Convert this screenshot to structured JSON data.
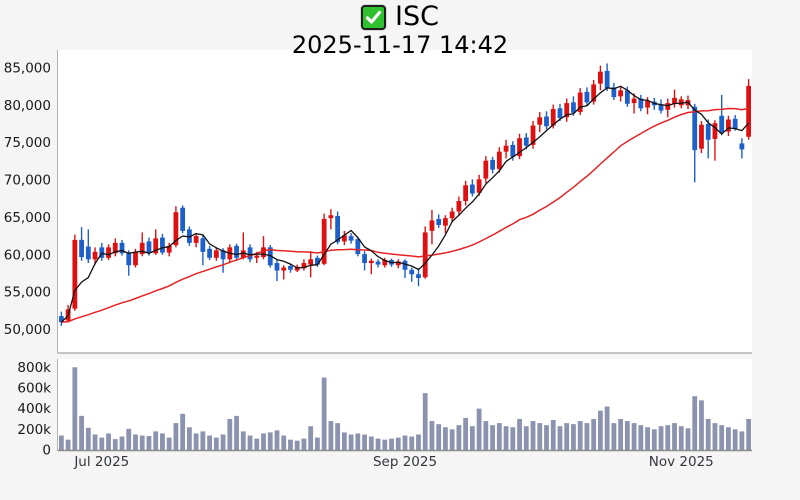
{
  "header": {
    "symbol": "ISC",
    "timestamp": "2025-11-17 14:42",
    "checkbox_checked": true
  },
  "colors": {
    "background": "#f5f5f5",
    "plot_background": "#ffffff",
    "up_candle": "#dd1111",
    "down_candle": "#1e60ca",
    "ma_short_line": "#111111",
    "ma_long_line": "#e62222",
    "volume_bar": "#8b93af",
    "axis_line": "#b3b3b3",
    "baseline": "#8c8c8c",
    "tick_text": "#1a1a1a",
    "x_tick_text": "#33373d",
    "checkbox_green": "#2fc12f"
  },
  "price_axis": {
    "tick_labels": [
      "85,000",
      "80,000",
      "75,000",
      "70,000",
      "65,000",
      "60,000",
      "55,000",
      "50,000"
    ],
    "tick_values": [
      85000,
      80000,
      75000,
      70000,
      65000,
      60000,
      55000,
      50000
    ],
    "range": [
      47000,
      87400
    ]
  },
  "volume_axis": {
    "tick_labels": [
      "800k",
      "600k",
      "400k",
      "200k",
      "0"
    ],
    "tick_values": [
      800000,
      600000,
      400000,
      200000,
      0
    ],
    "range": [
      0,
      880000
    ]
  },
  "x_axis": {
    "ticks": [
      {
        "label": "Jul 2025",
        "index": 6
      },
      {
        "label": "Sep 2025",
        "index": 51
      },
      {
        "label": "Nov 2025",
        "index": 92
      }
    ]
  },
  "chart_data": {
    "type": "candlestick_with_volume",
    "title": "ISC",
    "subtitle": "2025-11-17 14:42",
    "unit": "KRW",
    "ma": {
      "short_period": 5,
      "long_period": 30
    },
    "columns": [
      "open",
      "high",
      "low",
      "close",
      "volume"
    ],
    "candles": [
      [
        51800,
        52400,
        50500,
        51000,
        140000
      ],
      [
        51200,
        53300,
        51000,
        52700,
        100000
      ],
      [
        52800,
        62700,
        52500,
        62000,
        800000
      ],
      [
        62000,
        63700,
        59200,
        59700,
        330000
      ],
      [
        61100,
        63400,
        58900,
        59400,
        215000
      ],
      [
        59400,
        61000,
        58700,
        60400,
        150000
      ],
      [
        61000,
        61600,
        59200,
        59600,
        120000
      ],
      [
        59600,
        61400,
        59300,
        61000,
        160000
      ],
      [
        60200,
        62200,
        59800,
        61600,
        105000
      ],
      [
        61600,
        62000,
        59900,
        60200,
        130000
      ],
      [
        60200,
        60600,
        57200,
        58600,
        205000
      ],
      [
        58600,
        60800,
        58300,
        60400,
        150000
      ],
      [
        60100,
        63000,
        59800,
        61600,
        140000
      ],
      [
        61800,
        62300,
        59900,
        60200,
        135000
      ],
      [
        60200,
        63400,
        60000,
        62200,
        180000
      ],
      [
        62300,
        62800,
        60000,
        60300,
        160000
      ],
      [
        60300,
        61600,
        59800,
        61200,
        120000
      ],
      [
        61300,
        66500,
        61000,
        65700,
        260000
      ],
      [
        66300,
        66600,
        62900,
        63200,
        350000
      ],
      [
        63400,
        63800,
        61200,
        61600,
        220000
      ],
      [
        61600,
        62900,
        61000,
        62500,
        160000
      ],
      [
        62200,
        62600,
        58600,
        60400,
        180000
      ],
      [
        60800,
        61200,
        59300,
        59600,
        140000
      ],
      [
        59600,
        61000,
        59200,
        60600,
        120000
      ],
      [
        60600,
        60900,
        57600,
        59400,
        150000
      ],
      [
        59400,
        61400,
        58900,
        61000,
        300000
      ],
      [
        61200,
        61500,
        59300,
        59600,
        330000
      ],
      [
        59600,
        63000,
        59400,
        60600,
        180000
      ],
      [
        61000,
        61400,
        59000,
        59400,
        140000
      ],
      [
        59600,
        60400,
        58900,
        59900,
        110000
      ],
      [
        59700,
        62500,
        59400,
        61000,
        160000
      ],
      [
        61000,
        61300,
        58300,
        58600,
        170000
      ],
      [
        58900,
        59300,
        56500,
        57900,
        190000
      ],
      [
        57900,
        58600,
        56700,
        58300,
        140000
      ],
      [
        58500,
        58800,
        57600,
        58000,
        100000
      ],
      [
        57900,
        58700,
        57700,
        58400,
        90000
      ],
      [
        58200,
        59400,
        57900,
        58900,
        110000
      ],
      [
        58700,
        60500,
        57000,
        59400,
        230000
      ],
      [
        59600,
        59900,
        58400,
        58700,
        120000
      ],
      [
        58800,
        65500,
        58600,
        64800,
        700000
      ],
      [
        64900,
        66100,
        63400,
        65300,
        280000
      ],
      [
        65200,
        65800,
        61400,
        61700,
        260000
      ],
      [
        61800,
        63200,
        61300,
        62600,
        170000
      ],
      [
        62500,
        62900,
        61500,
        61900,
        150000
      ],
      [
        62100,
        62400,
        59800,
        60100,
        160000
      ],
      [
        60100,
        60500,
        57900,
        58900,
        150000
      ],
      [
        58900,
        59500,
        57400,
        59200,
        130000
      ],
      [
        59100,
        59400,
        58300,
        58700,
        110000
      ],
      [
        58600,
        59600,
        58300,
        59300,
        100000
      ],
      [
        59300,
        59500,
        58400,
        58700,
        110000
      ],
      [
        58600,
        59400,
        58200,
        59100,
        120000
      ],
      [
        59200,
        59400,
        56900,
        58000,
        140000
      ],
      [
        58000,
        58300,
        56400,
        57400,
        130000
      ],
      [
        57400,
        58200,
        55800,
        56900,
        150000
      ],
      [
        57000,
        63800,
        56800,
        63000,
        550000
      ],
      [
        63200,
        66000,
        61400,
        64600,
        280000
      ],
      [
        64800,
        65400,
        63600,
        64000,
        250000
      ],
      [
        63900,
        65300,
        62900,
        64900,
        220000
      ],
      [
        64900,
        66300,
        64400,
        65800,
        200000
      ],
      [
        65800,
        67800,
        65200,
        67200,
        240000
      ],
      [
        67200,
        69900,
        66600,
        69300,
        310000
      ],
      [
        69400,
        70100,
        67800,
        68200,
        230000
      ],
      [
        68300,
        70700,
        67900,
        70100,
        400000
      ],
      [
        70200,
        73200,
        69600,
        72600,
        280000
      ],
      [
        72700,
        73100,
        70900,
        71400,
        240000
      ],
      [
        71500,
        74400,
        71000,
        73800,
        260000
      ],
      [
        73800,
        75400,
        72900,
        74600,
        230000
      ],
      [
        74700,
        75200,
        72600,
        73100,
        220000
      ],
      [
        73200,
        76200,
        72800,
        75600,
        300000
      ],
      [
        75700,
        76300,
        74100,
        74600,
        230000
      ],
      [
        74700,
        77900,
        74200,
        77300,
        280000
      ],
      [
        77400,
        79100,
        76400,
        78400,
        260000
      ],
      [
        78500,
        79200,
        76800,
        77200,
        240000
      ],
      [
        77300,
        80100,
        76900,
        79500,
        290000
      ],
      [
        79600,
        80200,
        77900,
        78300,
        230000
      ],
      [
        78400,
        80900,
        77800,
        80300,
        260000
      ],
      [
        80400,
        81200,
        78600,
        79000,
        250000
      ],
      [
        79100,
        82300,
        78700,
        81700,
        280000
      ],
      [
        81800,
        82400,
        79900,
        80400,
        260000
      ],
      [
        80500,
        83400,
        80100,
        82800,
        300000
      ],
      [
        82900,
        85300,
        82000,
        84500,
        380000
      ],
      [
        84600,
        85600,
        81900,
        82300,
        420000
      ],
      [
        82400,
        83000,
        80700,
        81100,
        260000
      ],
      [
        81200,
        82600,
        80500,
        82000,
        300000
      ],
      [
        82000,
        82500,
        79800,
        80200,
        280000
      ],
      [
        80300,
        81600,
        78900,
        80900,
        260000
      ],
      [
        80900,
        81400,
        79200,
        79600,
        240000
      ],
      [
        79700,
        81100,
        78800,
        80600,
        220000
      ],
      [
        80500,
        81000,
        79400,
        80000,
        200000
      ],
      [
        80100,
        80800,
        78900,
        79300,
        230000
      ],
      [
        79400,
        80900,
        78400,
        80300,
        240000
      ],
      [
        80200,
        82100,
        79700,
        81000,
        260000
      ],
      [
        80000,
        81200,
        79600,
        80800,
        230000
      ],
      [
        80000,
        81300,
        79500,
        80700,
        210000
      ],
      [
        79800,
        80200,
        69700,
        74000,
        520000
      ],
      [
        74200,
        77900,
        73600,
        77400,
        480000
      ],
      [
        77500,
        78100,
        72900,
        75400,
        300000
      ],
      [
        75500,
        78000,
        72600,
        77600,
        260000
      ],
      [
        78600,
        81400,
        76000,
        76400,
        240000
      ],
      [
        76500,
        78600,
        75900,
        78100,
        220000
      ],
      [
        78200,
        78700,
        76600,
        76900,
        200000
      ],
      [
        74900,
        75600,
        72900,
        74100,
        180000
      ],
      [
        75800,
        83500,
        75400,
        82600,
        300000
      ]
    ]
  }
}
